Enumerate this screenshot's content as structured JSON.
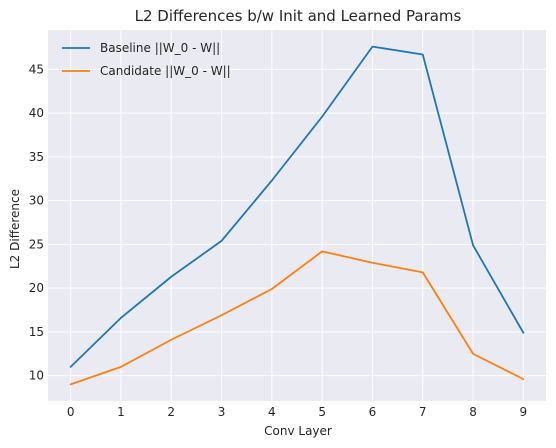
{
  "chart_data": {
    "type": "line",
    "title": "L2 Differences b/w Init and Learned Params",
    "xlabel": "Conv Layer",
    "ylabel": "L2 Difference",
    "x": [
      0,
      1,
      2,
      3,
      4,
      5,
      6,
      7,
      8,
      9
    ],
    "x_ticks": [
      "0",
      "1",
      "2",
      "3",
      "4",
      "5",
      "6",
      "7",
      "8",
      "9"
    ],
    "y_ticks": [
      "10",
      "15",
      "20",
      "25",
      "30",
      "35",
      "40",
      "45"
    ],
    "xlim": [
      -0.45,
      9.45
    ],
    "ylim": [
      7.1,
      49.5
    ],
    "grid": true,
    "legend": "top-left",
    "series": [
      {
        "name": "Baseline ||W_0 - W||",
        "color": "#1f77b4",
        "values": [
          11.0,
          16.6,
          21.3,
          25.4,
          32.3,
          39.6,
          47.6,
          46.7,
          24.9,
          14.9
        ]
      },
      {
        "name": "Candidate ||W_0 - W||",
        "color": "#ff7f0e",
        "values": [
          9.0,
          11.0,
          14.1,
          16.9,
          19.9,
          24.2,
          22.9,
          21.8,
          12.5,
          9.6
        ]
      }
    ]
  }
}
